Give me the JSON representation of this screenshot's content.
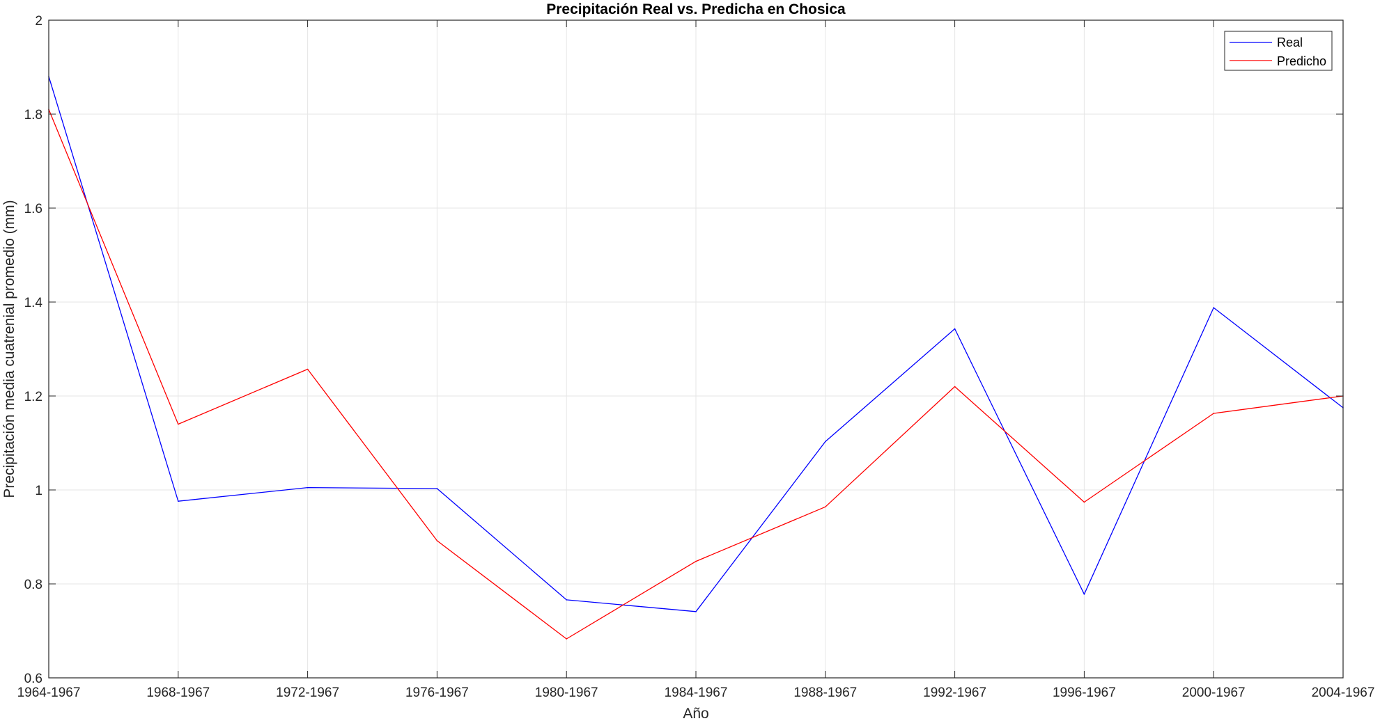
{
  "chart_data": {
    "type": "line",
    "title": "Precipitación Real vs. Predicha en Chosica",
    "xlabel": "Año",
    "ylabel": "Precipitación media cuatrenial promedio (mm)",
    "categories": [
      "1964-1967",
      "1968-1967",
      "1972-1967",
      "1976-1967",
      "1980-1967",
      "1984-1967",
      "1988-1967",
      "1992-1967",
      "1996-1967",
      "2000-1967",
      "2004-1967"
    ],
    "ylim": [
      0.6,
      2
    ],
    "yticks": [
      0.6,
      0.8,
      1,
      1.2,
      1.4,
      1.6,
      1.8,
      2
    ],
    "grid": true,
    "legend_position": "top-right",
    "series": [
      {
        "name": "Real",
        "color": "#0000ff",
        "values": [
          1.88,
          0.976,
          1.005,
          1.003,
          0.766,
          0.741,
          1.103,
          1.343,
          0.778,
          1.388,
          1.175
        ]
      },
      {
        "name": "Predicho",
        "color": "#ff0000",
        "values": [
          1.81,
          1.14,
          1.257,
          0.892,
          0.683,
          0.848,
          0.964,
          1.22,
          0.974,
          1.163,
          1.2
        ]
      }
    ]
  }
}
